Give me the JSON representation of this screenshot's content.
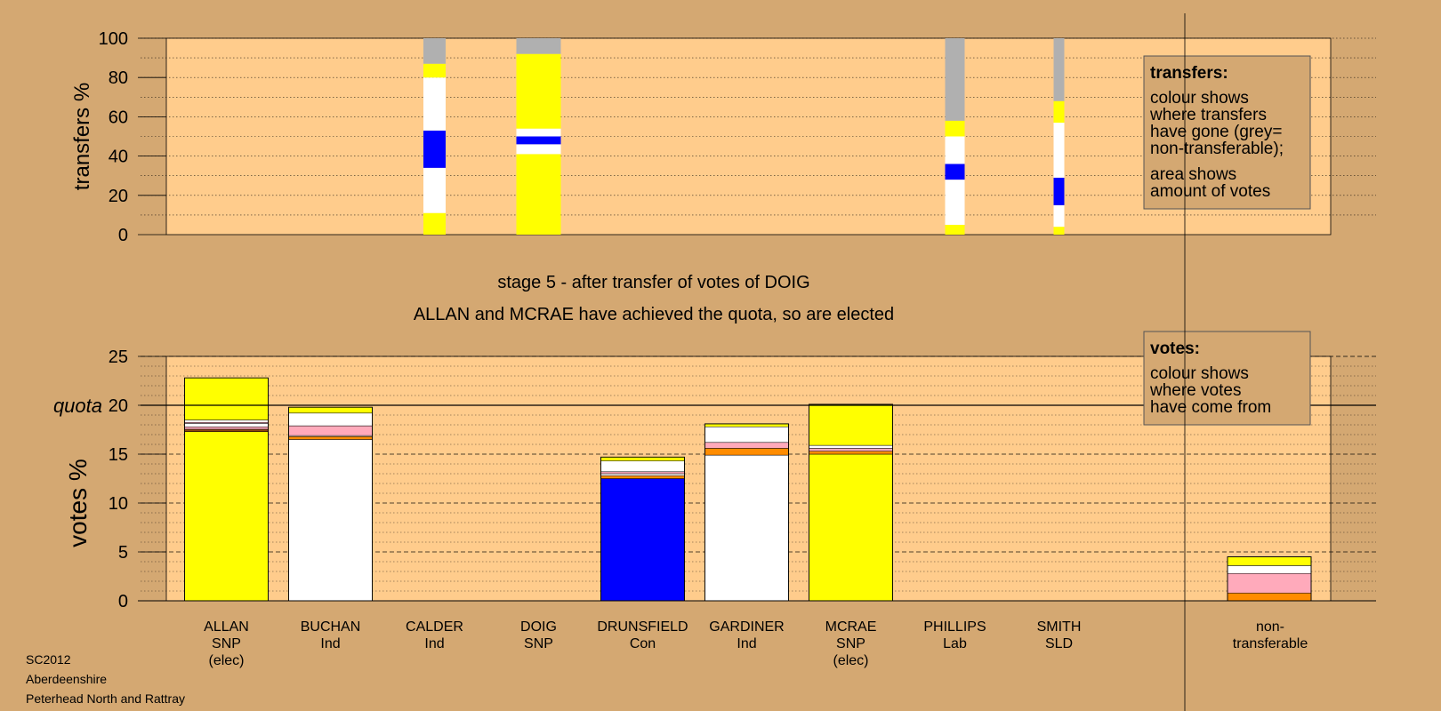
{
  "chart_data": {
    "type": "bar",
    "title": "stage 5 - after transfer of votes of DOIG",
    "subtitle": "ALLAN and MCRAE have achieved the quota, so are elected",
    "colors": {
      "background": "#d4a872",
      "plot": "#ffcc8c",
      "yellow": "#ffff00",
      "white": "#ffffff",
      "blue": "#0000ff",
      "grey": "#b0b0b0",
      "pink": "#ffaabb",
      "orange": "#ff8c00",
      "dark": "#8b4513"
    },
    "transfers": {
      "ylabel": "transfers %",
      "ylim": [
        0,
        100
      ],
      "yticks": [
        "0",
        "20",
        "40",
        "60",
        "80",
        "100"
      ],
      "grid": true,
      "legend": {
        "position": "top-right",
        "title": "transfers:",
        "lines": [
          "colour shows",
          "where transfers",
          "have gone (grey=",
          "non-transferable);"
        ],
        "lines2": [
          "area shows",
          "amount of votes"
        ]
      },
      "columns": [
        {
          "candidate": "CALDER",
          "segments": [
            {
              "color": "yellow",
              "from": 0,
              "to": 11
            },
            {
              "color": "white",
              "from": 11,
              "to": 34
            },
            {
              "color": "blue",
              "from": 34,
              "to": 53
            },
            {
              "color": "white",
              "from": 53,
              "to": 80
            },
            {
              "color": "yellow",
              "from": 80,
              "to": 87
            },
            {
              "color": "grey",
              "from": 87,
              "to": 100
            }
          ]
        },
        {
          "candidate": "DOIG",
          "segments": [
            {
              "color": "yellow",
              "from": 0,
              "to": 41
            },
            {
              "color": "white",
              "from": 41,
              "to": 46
            },
            {
              "color": "blue",
              "from": 46,
              "to": 50
            },
            {
              "color": "white",
              "from": 50,
              "to": 54
            },
            {
              "color": "yellow",
              "from": 54,
              "to": 92
            },
            {
              "color": "grey",
              "from": 92,
              "to": 100
            }
          ]
        },
        {
          "candidate": "PHILLIPS",
          "segments": [
            {
              "color": "yellow",
              "from": 0,
              "to": 5
            },
            {
              "color": "white",
              "from": 5,
              "to": 28
            },
            {
              "color": "blue",
              "from": 28,
              "to": 36
            },
            {
              "color": "white",
              "from": 36,
              "to": 50
            },
            {
              "color": "yellow",
              "from": 50,
              "to": 58
            },
            {
              "color": "grey",
              "from": 58,
              "to": 100
            }
          ]
        },
        {
          "candidate": "SMITH",
          "segments": [
            {
              "color": "yellow",
              "from": 0,
              "to": 4
            },
            {
              "color": "white",
              "from": 4,
              "to": 15
            },
            {
              "color": "blue",
              "from": 15,
              "to": 29
            },
            {
              "color": "white",
              "from": 29,
              "to": 57
            },
            {
              "color": "yellow",
              "from": 57,
              "to": 68
            },
            {
              "color": "grey",
              "from": 68,
              "to": 100
            }
          ]
        }
      ]
    },
    "votes": {
      "ylabel": "votes %",
      "ylim": [
        0,
        25
      ],
      "yticks": [
        "0",
        "5",
        "10",
        "15",
        "20",
        "25"
      ],
      "quota": 20,
      "quota_label": "quota",
      "grid": true,
      "legend": {
        "position": "top-right",
        "title": "votes:",
        "lines": [
          "colour shows",
          "where votes",
          "have come from"
        ]
      },
      "categories": [
        {
          "name": "ALLAN",
          "party": "SNP",
          "note": "(elec)",
          "segments": [
            {
              "color": "yellow",
              "value": 17.3
            },
            {
              "color": "dark",
              "value": 0.25
            },
            {
              "color": "pink",
              "value": 0.25
            },
            {
              "color": "white",
              "value": 0.35
            },
            {
              "color": "pink",
              "value": 0.1
            },
            {
              "color": "white",
              "value": 0.25
            },
            {
              "color": "yellow",
              "value": 4.3
            }
          ]
        },
        {
          "name": "BUCHAN",
          "party": "Ind",
          "note": "",
          "segments": [
            {
              "color": "white",
              "value": 16.5
            },
            {
              "color": "orange",
              "value": 0.3
            },
            {
              "color": "white",
              "value": 0.1
            },
            {
              "color": "pink",
              "value": 1.0
            },
            {
              "color": "white",
              "value": 1.3
            },
            {
              "color": "yellow",
              "value": 0.6
            }
          ]
        },
        {
          "name": "CALDER",
          "party": "Ind",
          "note": "",
          "segments": []
        },
        {
          "name": "DOIG",
          "party": "SNP",
          "note": "",
          "segments": []
        },
        {
          "name": "DRUNSFIELD",
          "party": "Con",
          "note": "",
          "segments": [
            {
              "color": "blue",
              "value": 12.5
            },
            {
              "color": "orange",
              "value": 0.3
            },
            {
              "color": "white",
              "value": 0.2
            },
            {
              "color": "pink",
              "value": 0.2
            },
            {
              "color": "white",
              "value": 1.1
            },
            {
              "color": "yellow",
              "value": 0.4
            }
          ]
        },
        {
          "name": "GARDINER",
          "party": "Ind",
          "note": "",
          "segments": [
            {
              "color": "white",
              "value": 14.9
            },
            {
              "color": "orange",
              "value": 0.7
            },
            {
              "color": "pink",
              "value": 0.6
            },
            {
              "color": "white",
              "value": 1.6
            },
            {
              "color": "yellow",
              "value": 0.3
            }
          ]
        },
        {
          "name": "MCRAE",
          "party": "SNP",
          "note": "(elec)",
          "segments": [
            {
              "color": "yellow",
              "value": 15.0
            },
            {
              "color": "orange",
              "value": 0.3
            },
            {
              "color": "pink",
              "value": 0.3
            },
            {
              "color": "white",
              "value": 0.3
            },
            {
              "color": "yellow",
              "value": 4.2
            }
          ]
        },
        {
          "name": "PHILLIPS",
          "party": "Lab",
          "note": "",
          "segments": []
        },
        {
          "name": "SMITH",
          "party": "SLD",
          "note": "",
          "segments": []
        }
      ],
      "nontransferable": {
        "label_lines": [
          "non-",
          "transferable"
        ],
        "segments": [
          {
            "color": "orange",
            "value": 0.8
          },
          {
            "color": "pink",
            "value": 2.0
          },
          {
            "color": "white",
            "value": 0.8
          },
          {
            "color": "yellow",
            "value": 0.9
          }
        ]
      }
    }
  },
  "footer": {
    "code": "SC2012",
    "council": "Aberdeenshire",
    "ward": "Peterhead North and Rattray"
  }
}
